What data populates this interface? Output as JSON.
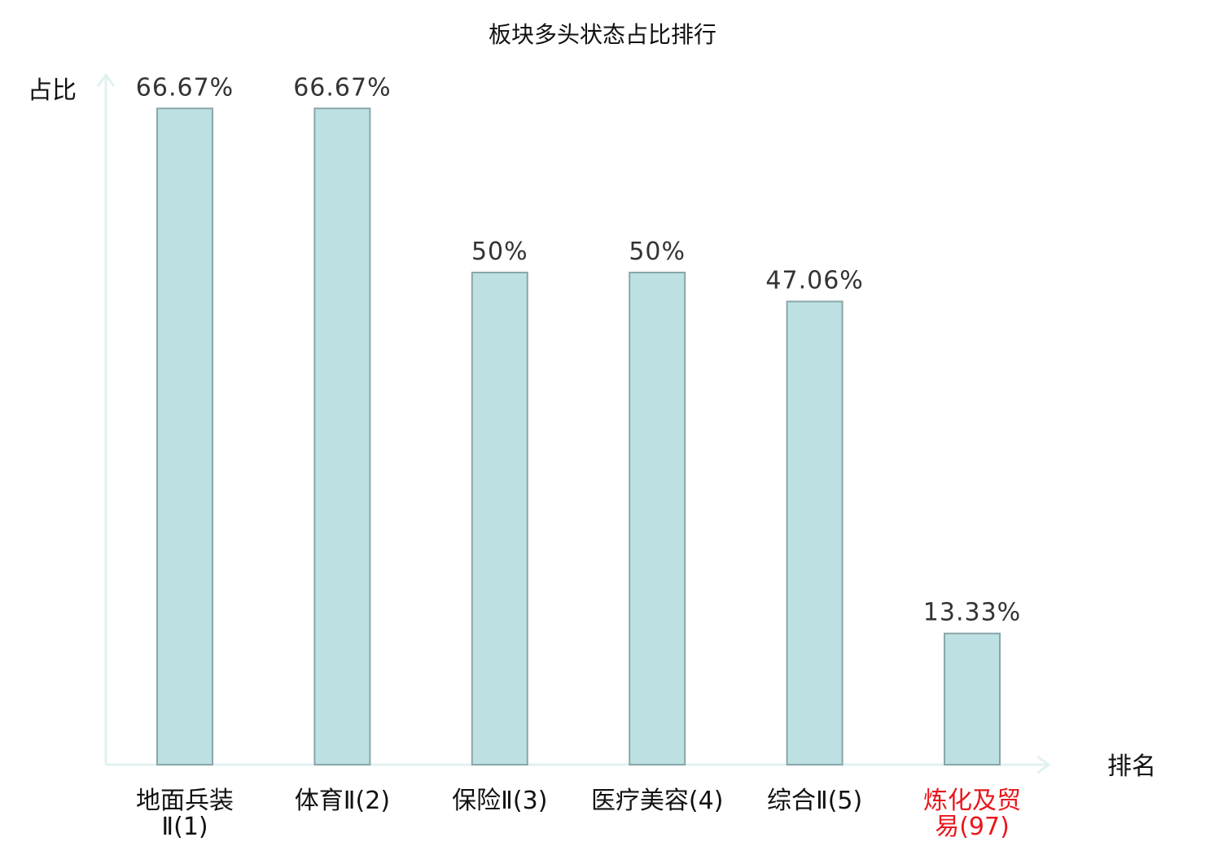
{
  "chart_data": {
    "type": "bar",
    "title": "板块多头状态占比排行",
    "xlabel": "排名",
    "ylabel": "占比",
    "categories": [
      {
        "lines": [
          "地面兵装",
          "Ⅱ(1)"
        ],
        "highlight": false
      },
      {
        "lines": [
          "体育Ⅱ(2)"
        ],
        "highlight": false
      },
      {
        "lines": [
          "保险Ⅱ(3)"
        ],
        "highlight": false
      },
      {
        "lines": [
          "医疗美容(4)"
        ],
        "highlight": false
      },
      {
        "lines": [
          "综合Ⅱ(5)"
        ],
        "highlight": false
      },
      {
        "lines": [
          "炼化及贸",
          "易(97)"
        ],
        "highlight": true
      }
    ],
    "values": [
      66.67,
      66.67,
      50,
      50,
      47.06,
      13.33
    ],
    "value_labels": [
      "66.67%",
      "66.67%",
      "50%",
      "50%",
      "47.06%",
      "13.33%"
    ],
    "ylim": [
      0,
      70
    ],
    "grid": false,
    "legend": "none",
    "colors": {
      "bar_fill": "#bde0e3",
      "bar_stroke": "#8aa6a8",
      "axis": "#e0f2f0",
      "text": "#111111",
      "value_text": "#333333",
      "highlight_text": "#e8171c"
    }
  }
}
